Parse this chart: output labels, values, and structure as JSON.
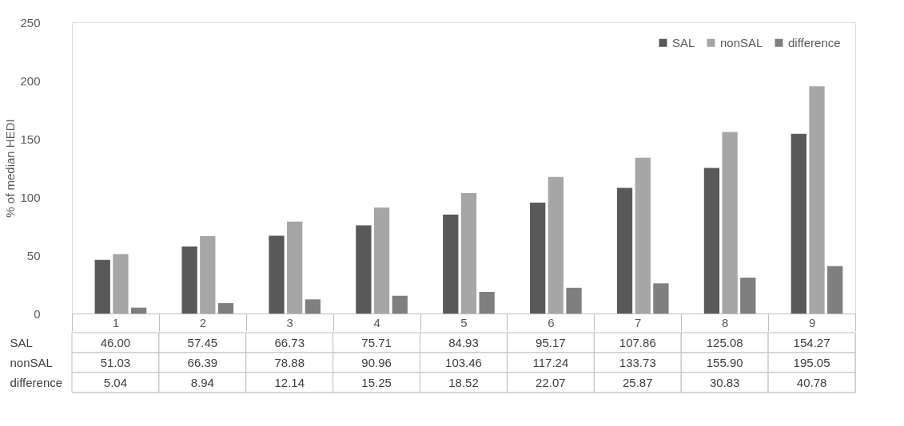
{
  "chart_data": {
    "type": "bar",
    "ylabel": "% of median HEDI",
    "categories": [
      "1",
      "2",
      "3",
      "4",
      "5",
      "6",
      "7",
      "8",
      "9"
    ],
    "series": [
      {
        "name": "SAL",
        "color": "#595959",
        "values": [
          46.0,
          57.45,
          66.73,
          75.71,
          84.93,
          95.17,
          107.86,
          125.08,
          154.27
        ],
        "value_labels": [
          "46.00",
          "57.45",
          "66.73",
          "75.71",
          "84.93",
          "95.17",
          "107.86",
          "125.08",
          "154.27"
        ]
      },
      {
        "name": "nonSAL",
        "color": "#a6a6a6",
        "values": [
          51.03,
          66.39,
          78.88,
          90.96,
          103.46,
          117.24,
          133.73,
          155.9,
          195.05
        ],
        "value_labels": [
          "51.03",
          "66.39",
          "78.88",
          "90.96",
          "103.46",
          "117.24",
          "133.73",
          "155.90",
          "195.05"
        ]
      },
      {
        "name": "difference",
        "color": "#7f7f7f",
        "values": [
          5.04,
          8.94,
          12.14,
          15.25,
          18.52,
          22.07,
          25.87,
          30.83,
          40.78
        ],
        "value_labels": [
          "5.04",
          "8.94",
          "12.14",
          "15.25",
          "18.52",
          "22.07",
          "25.87",
          "30.83",
          "40.78"
        ]
      }
    ],
    "ylim": [
      0,
      250
    ],
    "yticks": [
      0,
      50,
      100,
      150,
      200,
      250
    ],
    "grid": false,
    "legend": "top right"
  }
}
